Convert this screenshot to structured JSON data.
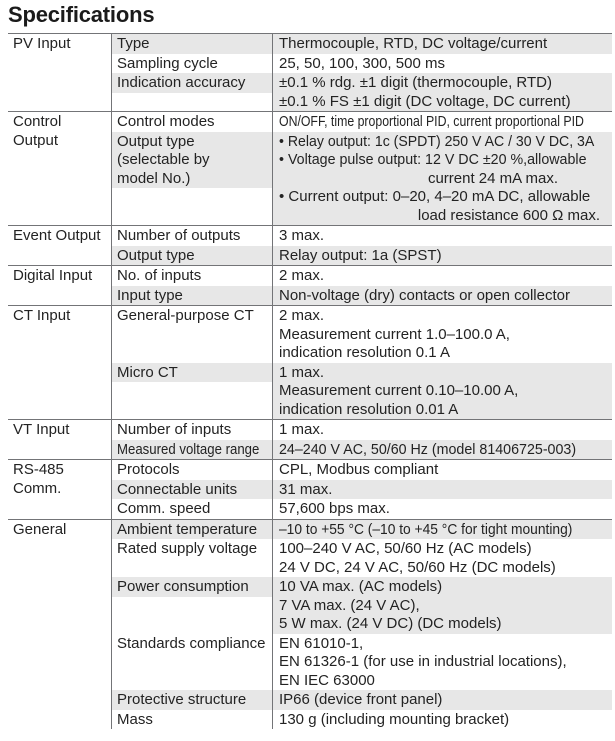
{
  "title": "Specifications",
  "colors": {
    "stripe": "#e7e7e7",
    "border": "#737477",
    "text": "#232323"
  },
  "table": {
    "sections": [
      {
        "cat_lines": [
          "PV Input"
        ],
        "rows": [
          {
            "param_lines": [
              "Type"
            ],
            "value_lines": [
              "Thermocouple, RTD, DC voltage/current"
            ]
          },
          {
            "param_lines": [
              "Sampling cycle"
            ],
            "value_lines": [
              "25, 50, 100, 300, 500 ms"
            ]
          },
          {
            "param_lines": [
              "Indication accuracy"
            ],
            "value_lines": [
              "±0.1 % rdg. ±1 digit (thermocouple, RTD)",
              "±0.1 % FS ±1 digit (DC voltage, DC current)"
            ]
          }
        ]
      },
      {
        "cat_lines": [
          "Control",
          "Output"
        ],
        "rows": [
          {
            "param_lines": [
              "Control modes"
            ],
            "value_lines": [
              "ON/OFF, time proportional PID, current proportional PID"
            ]
          },
          {
            "param_lines": [
              "Output type",
              "(selectable by",
              "model No.)"
            ],
            "value_lines": [
              "• Relay output: 1c (SPDT) 250 V AC / 30 V DC, 3A",
              "• Voltage pulse output: 12 V DC ±20 %,allowable",
              "current 24 mA max.",
              "• Current output: 0–20, 4–20 mA DC, allowable",
              "load resistance 600 Ω max."
            ]
          }
        ]
      },
      {
        "cat_lines": [
          "Event Output"
        ],
        "rows": [
          {
            "param_lines": [
              "Number of outputs"
            ],
            "value_lines": [
              "3 max."
            ]
          },
          {
            "param_lines": [
              "Output type"
            ],
            "value_lines": [
              "Relay output: 1a (SPST)"
            ]
          }
        ]
      },
      {
        "cat_lines": [
          "Digital Input"
        ],
        "rows": [
          {
            "param_lines": [
              "No. of inputs"
            ],
            "value_lines": [
              "2 max."
            ]
          },
          {
            "param_lines": [
              "Input type"
            ],
            "value_lines": [
              "Non-voltage (dry) contacts or open collector"
            ]
          }
        ]
      },
      {
        "cat_lines": [
          "CT Input"
        ],
        "rows": [
          {
            "param_lines": [
              "General-purpose CT"
            ],
            "value_lines": [
              "2 max.",
              "Measurement current 1.0–100.0 A,",
              "indication resolution 0.1 A"
            ]
          },
          {
            "param_lines": [
              "Micro CT"
            ],
            "value_lines": [
              "1 max.",
              "Measurement current 0.10–10.00 A,",
              "indication resolution 0.01 A"
            ]
          }
        ]
      },
      {
        "cat_lines": [
          "VT Input"
        ],
        "rows": [
          {
            "param_lines": [
              "Number of inputs"
            ],
            "value_lines": [
              "1 max."
            ]
          },
          {
            "param_lines": [
              "Measured voltage range"
            ],
            "value_lines": [
              "24–240 V AC, 50/60 Hz (model 81406725-003)"
            ]
          }
        ]
      },
      {
        "cat_lines": [
          "RS-485",
          "Comm."
        ],
        "rows": [
          {
            "param_lines": [
              "Protocols"
            ],
            "value_lines": [
              "CPL, Modbus compliant"
            ]
          },
          {
            "param_lines": [
              "Connectable units"
            ],
            "value_lines": [
              "31 max."
            ]
          },
          {
            "param_lines": [
              "Comm. speed"
            ],
            "value_lines": [
              "57,600 bps max."
            ]
          }
        ]
      },
      {
        "cat_lines": [
          "General"
        ],
        "rows": [
          {
            "param_lines": [
              "Ambient temperature"
            ],
            "value_lines": [
              "–10 to +55 °C (–10 to +45 °C for tight mounting)"
            ]
          },
          {
            "param_lines": [
              "Rated supply voltage"
            ],
            "value_lines": [
              "100–240 V AC, 50/60 Hz (AC models)",
              "24 V DC, 24 V AC, 50/60 Hz (DC models)"
            ]
          },
          {
            "param_lines": [
              "Power consumption"
            ],
            "value_lines": [
              "10 VA max. (AC models)",
              "7 VA max. (24 V AC),",
              "5 W max. (24 V DC) (DC models)"
            ]
          },
          {
            "param_lines": [
              "Standards compliance"
            ],
            "value_lines": [
              "EN 61010-1,",
              "EN 61326-1 (for use in industrial locations),",
              "EN IEC 63000"
            ]
          },
          {
            "param_lines": [
              "Protective structure"
            ],
            "value_lines": [
              "IP66 (device front panel)"
            ]
          },
          {
            "param_lines": [
              "Mass"
            ],
            "value_lines": [
              "130 g (including mounting bracket)"
            ]
          }
        ]
      }
    ]
  }
}
